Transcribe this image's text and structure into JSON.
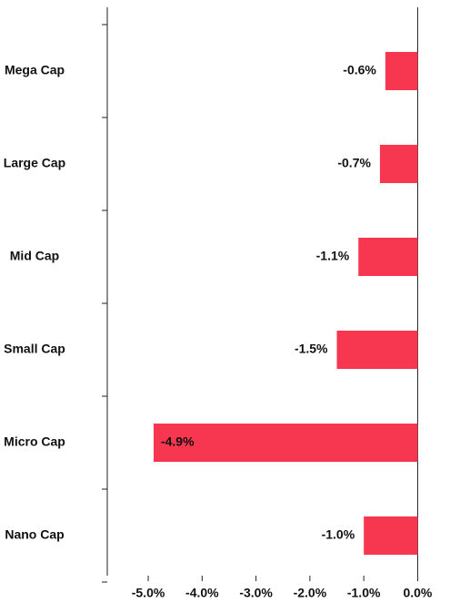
{
  "chart_data": {
    "type": "barh",
    "categories": [
      "Mega Cap",
      "Large Cap",
      "Mid Cap",
      "Small Cap",
      "Micro Cap",
      "Nano Cap"
    ],
    "values": [
      -0.6,
      -0.7,
      -1.1,
      -1.5,
      -4.9,
      -1.0
    ],
    "value_labels": [
      "-0.6%",
      "-0.7%",
      "-1.1%",
      "-1.5%",
      "-4.9%",
      "-1.0%"
    ],
    "color": "#f7374f",
    "xlim": [
      -5.76,
      0.6
    ],
    "xticks": [
      {
        "value": -5,
        "label": "-5.0%"
      },
      {
        "value": -4,
        "label": "-4.0%"
      },
      {
        "value": -3,
        "label": "-3.0%"
      },
      {
        "value": -2,
        "label": "-2.0%"
      },
      {
        "value": -1,
        "label": "-1.0%"
      },
      {
        "value": 0,
        "label": "0.0%"
      }
    ]
  }
}
